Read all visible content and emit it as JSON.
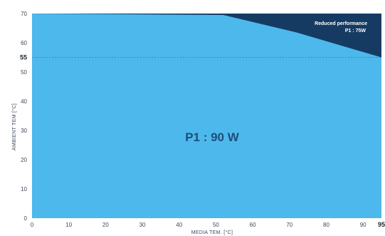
{
  "chart_data": {
    "type": "area",
    "xlabel": "MEDIA TEM. [°C]",
    "ylabel": "AMBIENT TEM [°C]",
    "xlim": [
      0,
      95
    ],
    "ylim": [
      0,
      70
    ],
    "x_ticks": [
      "0",
      "10",
      "20",
      "30",
      "40",
      "50",
      "60",
      "70",
      "80",
      "90"
    ],
    "x_tick_values": [
      0,
      10,
      20,
      30,
      40,
      50,
      60,
      70,
      80,
      90
    ],
    "x_highlight": "95",
    "y_ticks": [
      "0",
      "10",
      "20",
      "30",
      "40",
      "50",
      "60",
      "70"
    ],
    "y_tick_values": [
      0,
      10,
      20,
      30,
      40,
      50,
      60,
      70
    ],
    "y_highlight": "55",
    "y_highlight_value": 55,
    "series": [
      {
        "name": "P1 : 90 W",
        "x": [
          0,
          52,
          72,
          95
        ],
        "y": [
          70,
          69.5,
          63.5,
          55
        ],
        "color": "#4db8ec"
      }
    ],
    "reduced_region_color": "#163b63",
    "annotations": {
      "main_label": "P1 : 90 W",
      "reduced_line1": "Reduced performance",
      "reduced_line2": "P1 : 75W"
    },
    "grid": false
  }
}
